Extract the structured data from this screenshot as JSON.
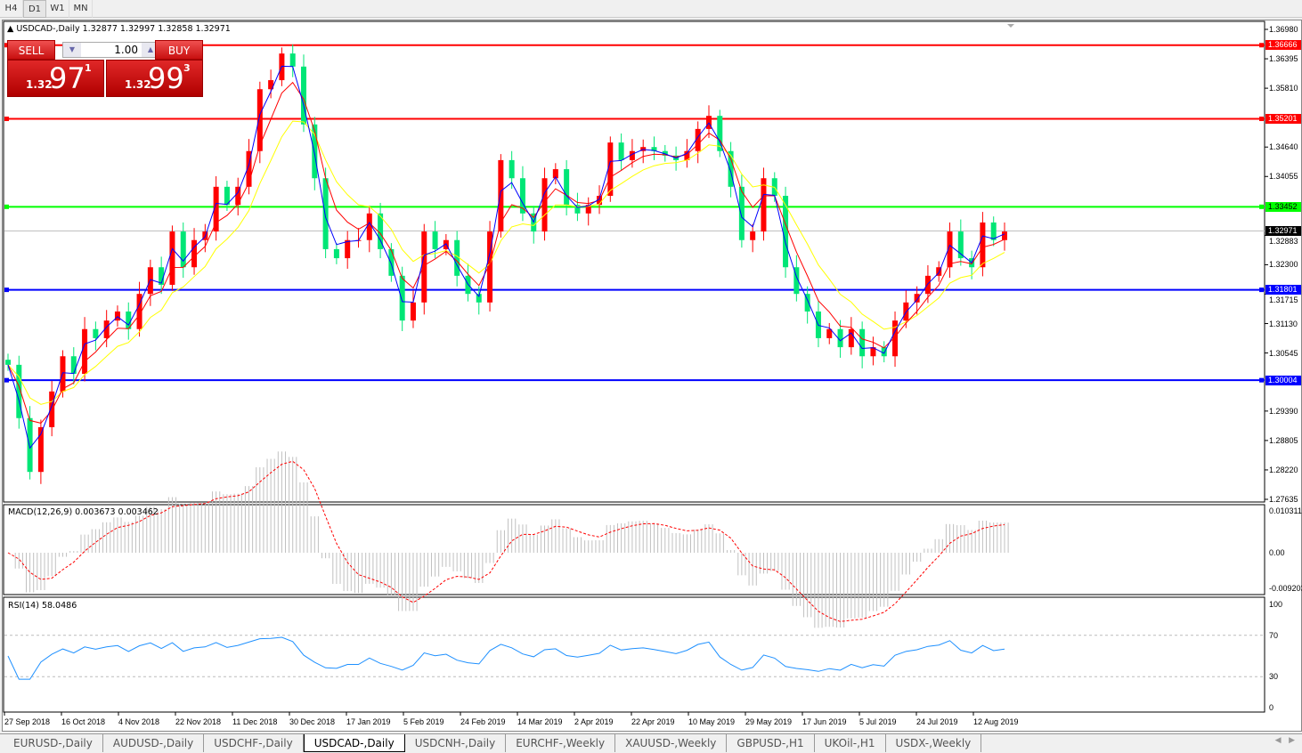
{
  "timeframes": [
    {
      "label": "H4"
    },
    {
      "label": "D1",
      "active": true
    },
    {
      "label": "W1"
    },
    {
      "label": "MN"
    }
  ],
  "chart": {
    "symbol_line": "USDCAD-,Daily  1.32877 1.32997 1.32858 1.32971"
  },
  "trade_panel": {
    "sell_label": "SELL",
    "buy_label": "BUY",
    "lot": "1.00",
    "sell_prefix": "1.32",
    "sell_big": "97",
    "sell_exp": "1",
    "buy_prefix": "1.32",
    "buy_big": "99",
    "buy_exp": "3"
  },
  "price_axis": {
    "labels": [
      "1.36980",
      "1.36395",
      "1.35810",
      "1.34640",
      "1.34055",
      "1.32883",
      "1.32300",
      "1.31715",
      "1.31130",
      "1.30545",
      "1.29390",
      "1.28805",
      "1.28220",
      "1.27635"
    ],
    "range": [
      1.27635,
      1.3698
    ]
  },
  "levels": [
    {
      "price": "1.36666",
      "color": "#ff0000"
    },
    {
      "price": "1.35201",
      "color": "#ff0000"
    },
    {
      "price": "1.33452",
      "color": "#00ff00"
    },
    {
      "price": "1.31801",
      "color": "#0000ff"
    },
    {
      "price": "1.30004",
      "color": "#0000ff"
    }
  ],
  "current_price": {
    "price": "1.32971",
    "color": "#000000"
  },
  "macd": {
    "label": "MACD(12,26,9) 0.003673 0.003462",
    "axis": [
      "0.010311",
      "0.00",
      "-0.009203"
    ]
  },
  "rsi": {
    "label": "RSI(14) 58.0486",
    "axis": [
      "100",
      "70",
      "30",
      "0"
    ]
  },
  "dates": [
    "27 Sep 2018",
    "16 Oct 2018",
    "4 Nov 2018",
    "22 Nov 2018",
    "11 Dec 2018",
    "30 Dec 2018",
    "17 Jan 2019",
    "5 Feb 2019",
    "24 Feb 2019",
    "14 Mar 2019",
    "2 Apr 2019",
    "22 Apr 2019",
    "10 May 2019",
    "29 May 2019",
    "17 Jun 2019",
    "5 Jul 2019",
    "24 Jul 2019",
    "12 Aug 2019"
  ],
  "tabs": [
    {
      "label": "EURUSD-,Daily"
    },
    {
      "label": "AUDUSD-,Daily"
    },
    {
      "label": "USDCHF-,Daily"
    },
    {
      "label": "USDCAD-,Daily",
      "active": true
    },
    {
      "label": "USDCNH-,Daily"
    },
    {
      "label": "EURCHF-,Weekly"
    },
    {
      "label": "XAUUSD-,Weekly"
    },
    {
      "label": "GBPUSD-,H1"
    },
    {
      "label": "UKOil-,H1"
    },
    {
      "label": "USDX-,Weekly"
    }
  ],
  "colors": {
    "bull": "#ff0000",
    "bear": "#00e676",
    "ma_fast": "#0000ff",
    "ma_mid": "#ff0000",
    "ma_slow": "#ffff00",
    "rsi": "#1e90ff",
    "macd_hist": "#c0c0c0",
    "macd_signal": "#ff0000"
  },
  "chart_data": {
    "type": "candlestick",
    "closes": [
      1.3031,
      1.2925,
      1.2818,
      1.2907,
      1.2978,
      1.3048,
      1.3013,
      1.3102,
      1.3084,
      1.3119,
      1.3137,
      1.3102,
      1.3172,
      1.3225,
      1.319,
      1.3296,
      1.3225,
      1.3279,
      1.3296,
      1.3385,
      1.3349,
      1.3385,
      1.3456,
      1.3579,
      1.3597,
      1.365,
      1.3624,
      1.3509,
      1.3402,
      1.3261,
      1.3243,
      1.3279,
      1.3279,
      1.3332,
      1.3261,
      1.3208,
      1.3119,
      1.3155,
      1.3296,
      1.3261,
      1.3279,
      1.3208,
      1.3172,
      1.3155,
      1.3296,
      1.3438,
      1.3402,
      1.3332,
      1.3296,
      1.3402,
      1.342,
      1.3349,
      1.3332,
      1.3349,
      1.3367,
      1.3473,
      1.3438,
      1.3456,
      1.3464,
      1.3456,
      1.3447,
      1.3438,
      1.3456,
      1.35,
      1.3526,
      1.3456,
      1.3385,
      1.3279,
      1.3296,
      1.3402,
      1.3367,
      1.3225,
      1.3172,
      1.3137,
      1.3084,
      1.3102,
      1.3066,
      1.3102,
      1.3048,
      1.3066,
      1.3048,
      1.3119,
      1.3155,
      1.3172,
      1.3208,
      1.3225,
      1.3296,
      1.3243,
      1.3225,
      1.3314,
      1.3279,
      1.3296
    ]
  }
}
